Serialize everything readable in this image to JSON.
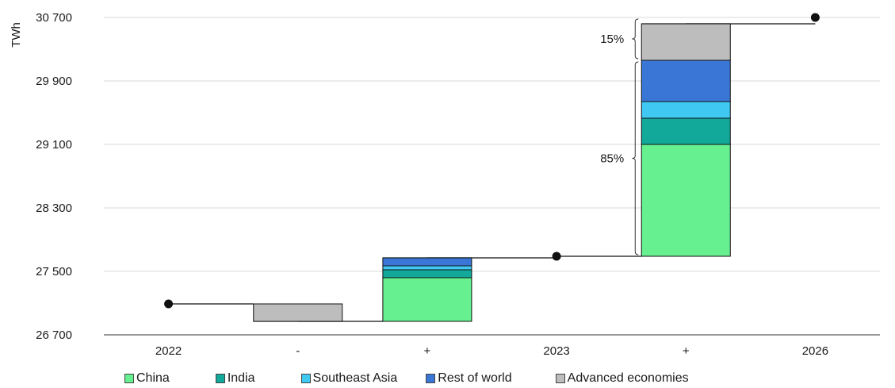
{
  "chart_data": {
    "type": "bar",
    "subtype": "waterfall",
    "ylabel": "TWh",
    "ylim": [
      26700,
      30700
    ],
    "yticks": [
      "26 700",
      "27 500",
      "28 300",
      "29 100",
      "29 900",
      "30 700"
    ],
    "ytick_values": [
      26700,
      27500,
      28300,
      29100,
      29900,
      30700
    ],
    "categories": [
      "2022",
      "-",
      "+",
      "2023",
      "+",
      "2026"
    ],
    "totals": [
      {
        "category": "2022",
        "value": 27090
      },
      {
        "category": "2023",
        "value": 27690
      },
      {
        "category": "2026",
        "value": 30700
      }
    ],
    "colors": {
      "China": "#66f08f",
      "India": "#12a89a",
      "Southeast Asia": "#3fc8f2",
      "Rest of world": "#3a76d6",
      "Advanced economies": "#bdbdbd"
    },
    "series": [
      {
        "name": "China",
        "values": [
          null,
          0,
          550,
          null,
          1410,
          null
        ]
      },
      {
        "name": "India",
        "values": [
          null,
          0,
          100,
          null,
          330,
          null
        ]
      },
      {
        "name": "Southeast Asia",
        "values": [
          null,
          0,
          50,
          null,
          210,
          null
        ]
      },
      {
        "name": "Rest of world",
        "values": [
          null,
          0,
          100,
          null,
          520,
          null
        ]
      },
      {
        "name": "Advanced economies",
        "values": [
          null,
          -220,
          0,
          null,
          460,
          null
        ]
      }
    ],
    "annotations": [
      {
        "text": "85%",
        "applies_to": "2023-2026 increase from China, India, Southeast Asia and Rest of world"
      },
      {
        "text": "15%",
        "applies_to": "2023-2026 increase from Advanced economies"
      }
    ],
    "legend_position": "bottom",
    "grid": "horizontal"
  },
  "legend": [
    {
      "label": "China",
      "color": "#66f08f"
    },
    {
      "label": "India",
      "color": "#12a89a"
    },
    {
      "label": "Southeast Asia",
      "color": "#3fc8f2"
    },
    {
      "label": "Rest of world",
      "color": "#3a76d6"
    },
    {
      "label": "Advanced economies",
      "color": "#bdbdbd"
    }
  ]
}
